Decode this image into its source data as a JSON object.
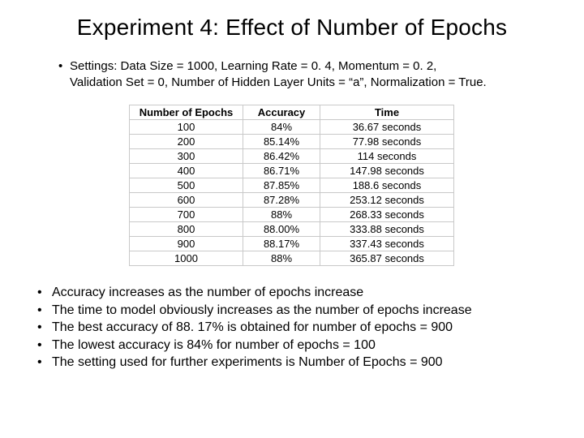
{
  "title": "Experiment 4: Effect of Number of Epochs",
  "settings": {
    "line1": "Settings: Data Size = 1000, Learning Rate = 0. 4, Momentum = 0. 2,",
    "line2": "Validation Set = 0, Number of Hidden Layer Units = “a”, Normalization = True."
  },
  "table": {
    "headers": {
      "epochs": "Number of Epochs",
      "accuracy": "Accuracy",
      "time": "Time"
    },
    "rows": [
      {
        "epochs": "100",
        "accuracy": "84%",
        "time": "36.67 seconds"
      },
      {
        "epochs": "200",
        "accuracy": "85.14%",
        "time": "77.98 seconds"
      },
      {
        "epochs": "300",
        "accuracy": "86.42%",
        "time": "114 seconds"
      },
      {
        "epochs": "400",
        "accuracy": "86.71%",
        "time": "147.98 seconds"
      },
      {
        "epochs": "500",
        "accuracy": "87.85%",
        "time": "188.6 seconds"
      },
      {
        "epochs": "600",
        "accuracy": "87.28%",
        "time": "253.12 seconds"
      },
      {
        "epochs": "700",
        "accuracy": "88%",
        "time": "268.33 seconds"
      },
      {
        "epochs": "800",
        "accuracy": "88.00%",
        "time": "333.88 seconds"
      },
      {
        "epochs": "900",
        "accuracy": "88.17%",
        "time": "337.43 seconds"
      },
      {
        "epochs": "1000",
        "accuracy": "88%",
        "time": "365.87 seconds"
      }
    ]
  },
  "observations": {
    "items": [
      "Accuracy increases as the number of epochs increase",
      "The time to model obviously increases as the number of epochs increase",
      "The best accuracy of 88. 17% is obtained for number of epochs = 900",
      "The lowest accuracy is 84% for number of epochs = 100",
      "The setting used for further experiments is Number of Epochs = 900"
    ]
  },
  "bullet": "•"
}
